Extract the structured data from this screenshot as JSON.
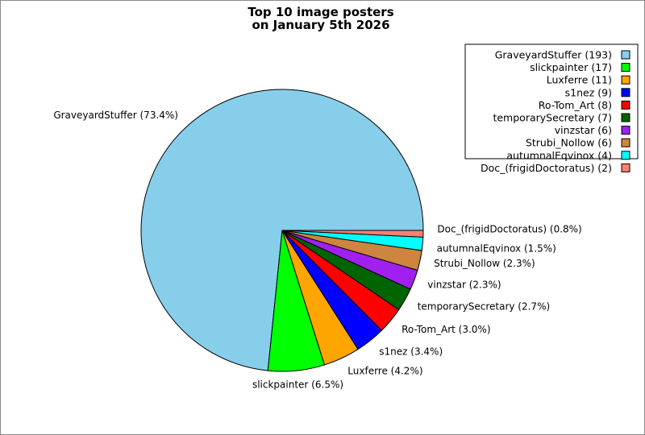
{
  "chart_data": {
    "type": "pie",
    "title_lines": [
      "Top 10 image posters",
      "on January 5th 2026"
    ],
    "legend_position": "top-right",
    "slices": [
      {
        "name": "GraveyardStuffer",
        "value": 193,
        "percent_label": "GraveyardStuffer (73.4%)",
        "legend_label": "GraveyardStuffer (193)",
        "color": "#87ceeb"
      },
      {
        "name": "slickpainter",
        "value": 17,
        "percent_label": "slickpainter (6.5%)",
        "legend_label": "slickpainter (17)",
        "color": "#00ff00"
      },
      {
        "name": "Luxferre",
        "value": 11,
        "percent_label": "Luxferre (4.2%)",
        "legend_label": "Luxferre (11)",
        "color": "#ffa500"
      },
      {
        "name": "s1nez",
        "value": 9,
        "percent_label": "s1nez (3.4%)",
        "legend_label": "s1nez (9)",
        "color": "#0000ff"
      },
      {
        "name": "Ro-Tom_Art",
        "value": 8,
        "percent_label": "Ro-Tom_Art (3.0%)",
        "legend_label": "Ro-Tom_Art (8)",
        "color": "#ff0000"
      },
      {
        "name": "temporarySecretary",
        "value": 7,
        "percent_label": "temporarySecretary (2.7%)",
        "legend_label": "temporarySecretary (7)",
        "color": "#006400"
      },
      {
        "name": "vinzstar",
        "value": 6,
        "percent_label": "vinzstar (2.3%)",
        "legend_label": "vinzstar (6)",
        "color": "#a020f0"
      },
      {
        "name": "Strubi_Nollow",
        "value": 6,
        "percent_label": "Strubi_Nollow (2.3%)",
        "legend_label": "Strubi_Nollow (6)",
        "color": "#cd853f"
      },
      {
        "name": "autumnalEqvinox",
        "value": 4,
        "percent_label": "autumnalEqvinox (1.5%)",
        "legend_label": "autumnalEqvinox (4)",
        "color": "#00ffff"
      },
      {
        "name": "Doc_(frigidDoctoratus)",
        "value": 2,
        "percent_label": "Doc_(frigidDoctoratus) (0.8%)",
        "legend_label": "Doc_(frigidDoctoratus) (2)",
        "color": "#fa8072"
      }
    ]
  }
}
